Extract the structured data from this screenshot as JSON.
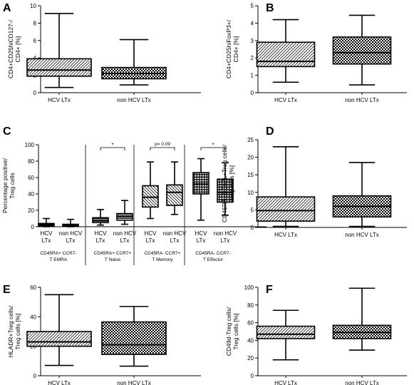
{
  "chart_data": [
    {
      "type": "box",
      "panel_label": "A",
      "ylabel": [
        "CD4+CD25hiCD127-/",
        "CD4+ [%]"
      ],
      "ylim": [
        0,
        10
      ],
      "yticks": [
        0,
        2,
        4,
        6,
        8,
        10
      ],
      "categories": [
        "HCV LTx",
        "non HCV LTx"
      ],
      "boxes": [
        {
          "min": 0.6,
          "q1": 1.9,
          "median": 2.6,
          "q3": 3.9,
          "max": 9.1,
          "pattern": "hatch"
        },
        {
          "min": 0.9,
          "q1": 1.6,
          "median": 2.2,
          "q3": 2.9,
          "max": 6.1,
          "pattern": "check"
        }
      ]
    },
    {
      "type": "box",
      "panel_label": "B",
      "ylabel": [
        "CD4+CD25hiFoxP3+/",
        "CD4+ [%]"
      ],
      "ylim": [
        0,
        5
      ],
      "yticks": [
        0,
        1,
        2,
        3,
        4,
        5
      ],
      "categories": [
        "HCV LTx",
        "non HCV LTx"
      ],
      "boxes": [
        {
          "min": 0.6,
          "q1": 1.5,
          "median": 1.8,
          "q3": 2.9,
          "max": 4.2,
          "pattern": "hatch"
        },
        {
          "min": 0.45,
          "q1": 1.65,
          "median": 2.3,
          "q3": 3.2,
          "max": 4.45,
          "pattern": "check"
        }
      ]
    },
    {
      "type": "box",
      "panel_label": "C",
      "ylabel": [
        "Percentage positive/",
        "Treg cells"
      ],
      "ylim": [
        0,
        100
      ],
      "yticks": [
        0,
        20,
        40,
        60,
        80,
        100
      ],
      "groups": [
        {
          "label": [
            "CD45RA+ CCR7-",
            "T EMRA"
          ],
          "annotation": "",
          "pattern": "hbar",
          "categories": [
            [
              "HCV",
              "LTx"
            ],
            [
              "non HCV",
              "LTx"
            ]
          ],
          "boxes": [
            {
              "min": 0,
              "q1": 0.5,
              "median": 2,
              "q3": 4,
              "max": 10
            },
            {
              "min": 0,
              "q1": 0.5,
              "median": 1.5,
              "q3": 3,
              "max": 9
            }
          ]
        },
        {
          "label": [
            "CD45RA+ CCR7+",
            "T Naive"
          ],
          "annotation": "*",
          "pattern": "hbar",
          "categories": [
            [
              "HCV",
              "LTx"
            ],
            [
              "non HCV",
              "LTx"
            ]
          ],
          "boxes": [
            {
              "min": 2,
              "q1": 5,
              "median": 8,
              "q3": 11,
              "max": 21
            },
            {
              "min": 3,
              "q1": 8,
              "median": 12,
              "q3": 16,
              "max": 32
            }
          ]
        },
        {
          "label": [
            "CD45RA- CCR7+",
            "T Memory"
          ],
          "annotation": "p= 0.09",
          "pattern": "dhatch",
          "categories": [
            [
              "HCV",
              "LTx"
            ],
            [
              "non HCV",
              "LTx"
            ]
          ],
          "boxes": [
            {
              "min": 10,
              "q1": 24,
              "median": 36,
              "q3": 50,
              "max": 79
            },
            {
              "min": 15,
              "q1": 26,
              "median": 42,
              "q3": 51,
              "max": 79
            }
          ]
        },
        {
          "label": [
            "CD45RA- CCR7-",
            "T Effector"
          ],
          "annotation": "*",
          "pattern": "grid",
          "categories": [
            [
              "HCV",
              "LTx"
            ],
            [
              "non HCV",
              "LTx"
            ]
          ],
          "boxes": [
            {
              "min": 8,
              "q1": 40,
              "median": 52,
              "q3": 66,
              "max": 83
            },
            {
              "min": 14,
              "q1": 30,
              "median": 42,
              "q3": 58,
              "max": 78
            }
          ]
        }
      ]
    },
    {
      "type": "box",
      "panel_label": "D",
      "ylabel": [
        "CD45RA+CD62L+Treg cells/",
        "Treg cells [%]"
      ],
      "ylim": [
        0,
        25
      ],
      "yticks": [
        0,
        5,
        10,
        15,
        20,
        25
      ],
      "categories": [
        "HCV LTx",
        "non HCV LTx"
      ],
      "boxes": [
        {
          "min": 0.3,
          "q1": 1.8,
          "median": 4.8,
          "q3": 8.7,
          "max": 23,
          "pattern": "hatch"
        },
        {
          "min": 0.3,
          "q1": 3,
          "median": 6,
          "q3": 9,
          "max": 18.5,
          "pattern": "check"
        }
      ]
    },
    {
      "type": "box",
      "panel_label": "E",
      "ylabel": [
        "HLADR+Treg cells/",
        "Treg cells [%]"
      ],
      "ylim": [
        0,
        60
      ],
      "yticks": [
        0,
        20,
        40,
        60
      ],
      "categories": [
        "HCV LTx",
        "non HCV LTx"
      ],
      "boxes": [
        {
          "min": 7,
          "q1": 20,
          "median": 23,
          "q3": 30,
          "max": 55,
          "pattern": "hatch"
        },
        {
          "min": 6.5,
          "q1": 14.5,
          "median": 21,
          "q3": 36.5,
          "max": 47,
          "pattern": "check"
        }
      ]
    },
    {
      "type": "box",
      "panel_label": "F",
      "ylabel": [
        "CD49d-Treg cells/",
        "Treg cells [%]"
      ],
      "ylim": [
        0,
        100
      ],
      "yticks": [
        0,
        20,
        40,
        60,
        80,
        100
      ],
      "categories": [
        "HCV LTx",
        "non HCV LTx"
      ],
      "boxes": [
        {
          "min": 18,
          "q1": 42,
          "median": 47,
          "q3": 56,
          "max": 74,
          "pattern": "hatch"
        },
        {
          "min": 29,
          "q1": 42,
          "median": 49,
          "q3": 57,
          "max": 99,
          "pattern": "check"
        }
      ]
    }
  ]
}
